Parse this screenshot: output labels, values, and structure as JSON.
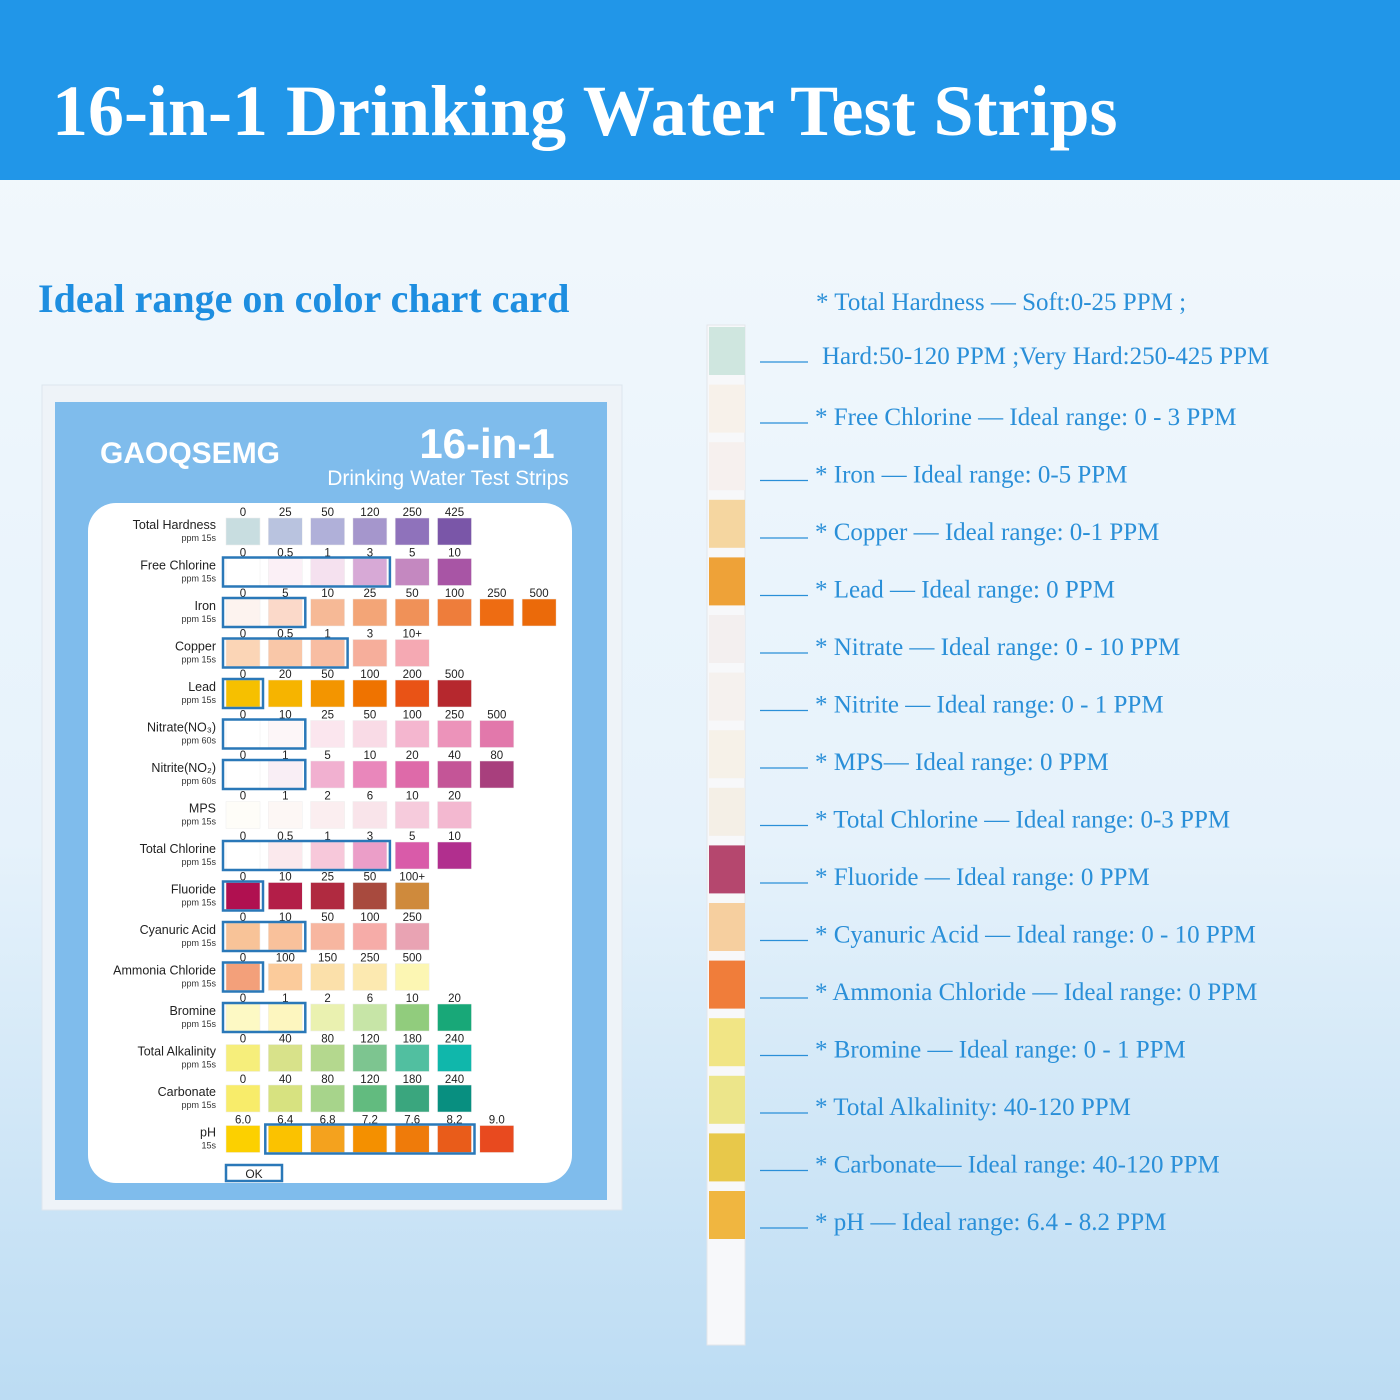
{
  "header": {
    "title": "16-in-1 Drinking Water Test Strips"
  },
  "subtitle": "Ideal range on color chart card",
  "card": {
    "brand": "GAOQSEMG",
    "title": "16-in-1",
    "subtitle": "Drinking Water Test Strips",
    "ok": "OK",
    "rows": [
      {
        "name": "Total Hardness",
        "unit": "ppm 15s",
        "levels": [
          "0",
          "25",
          "50",
          "120",
          "250",
          "425"
        ],
        "colors": [
          "#c8dde0",
          "#b9c3df",
          "#b0b0d9",
          "#a596cc",
          "#8f72bb",
          "#7a56a8"
        ]
      },
      {
        "name": "Free Chlorine",
        "unit": "ppm 15s",
        "levels": [
          "0",
          "0.5",
          "1",
          "3",
          "5",
          "10"
        ],
        "colors": [
          "#ffffff",
          "#fbf0f6",
          "#f5e1ef",
          "#d7a9d6",
          "#c488c0",
          "#a855a5"
        ],
        "ideal": [
          0,
          3
        ]
      },
      {
        "name": "Iron",
        "unit": "ppm 15s",
        "levels": [
          "0",
          "5",
          "10",
          "25",
          "50",
          "100",
          "250",
          "500"
        ],
        "colors": [
          "#fdf3ef",
          "#fbd9c9",
          "#f6b996",
          "#f3a577",
          "#f09158",
          "#ee7d3b",
          "#ee6c12",
          "#eb6a0a"
        ],
        "ideal": [
          0,
          1
        ]
      },
      {
        "name": "Copper",
        "unit": "ppm 15s",
        "levels": [
          "0",
          "0.5",
          "1",
          "3",
          "10+"
        ],
        "colors": [
          "#fbd5b6",
          "#f9c7a8",
          "#f8bda2",
          "#f6ae9b",
          "#f5a9b3"
        ],
        "ideal": [
          0,
          2
        ]
      },
      {
        "name": "Lead",
        "unit": "ppm 15s",
        "levels": [
          "0",
          "20",
          "50",
          "100",
          "200",
          "500"
        ],
        "colors": [
          "#f6c000",
          "#f6b400",
          "#f39500",
          "#ef7300",
          "#e95316",
          "#b6282e"
        ],
        "ideal": [
          0,
          0
        ]
      },
      {
        "name": "Nitrate(NO₃)",
        "unit": "ppm 60s",
        "levels": [
          "0",
          "10",
          "25",
          "50",
          "100",
          "250",
          "500"
        ],
        "colors": [
          "#ffffff",
          "#fdf6f8",
          "#fbe6ee",
          "#f9dbe6",
          "#f4b6cf",
          "#ec93ba",
          "#e278ab"
        ],
        "ideal": [
          0,
          1
        ]
      },
      {
        "name": "Nitrite(NO₂)",
        "unit": "ppm 60s",
        "levels": [
          "0",
          "1",
          "5",
          "10",
          "20",
          "40",
          "80"
        ],
        "colors": [
          "#ffffff",
          "#f9eef5",
          "#f1b0d0",
          "#e987bb",
          "#de6aa9",
          "#c45597",
          "#a83f7d"
        ],
        "ideal": [
          0,
          1
        ]
      },
      {
        "name": "MPS",
        "unit": "ppm 15s",
        "levels": [
          "0",
          "1",
          "2",
          "6",
          "10",
          "20"
        ],
        "colors": [
          "#fefdf8",
          "#fdf7f5",
          "#fbeef0",
          "#f9e4ea",
          "#f6cbdc",
          "#f3b8d0"
        ]
      },
      {
        "name": "Total Chlorine",
        "unit": "ppm 15s",
        "levels": [
          "0",
          "0.5",
          "1",
          "3",
          "5",
          "10"
        ],
        "colors": [
          "#ffffff",
          "#fbe9ed",
          "#f7c8da",
          "#eb9ec8",
          "#d95ba9",
          "#b12f8e"
        ],
        "ideal": [
          0,
          3
        ]
      },
      {
        "name": "Fluoride",
        "unit": "ppm 15s",
        "levels": [
          "0",
          "10",
          "25",
          "50",
          "100+"
        ],
        "colors": [
          "#b01050",
          "#b31e48",
          "#b02a40",
          "#a84a3e",
          "#cf8a3c"
        ],
        "ideal": [
          0,
          0
        ]
      },
      {
        "name": "Cyanuric Acid",
        "unit": "ppm 15s",
        "levels": [
          "0",
          "10",
          "50",
          "100",
          "250"
        ],
        "colors": [
          "#f8c398",
          "#f9c19b",
          "#f7b6a0",
          "#f6aca8",
          "#e9a3b3"
        ],
        "ideal": [
          0,
          1
        ]
      },
      {
        "name": "Ammonia Chloride",
        "unit": "ppm 15s",
        "levels": [
          "0",
          "100",
          "150",
          "250",
          "500"
        ],
        "colors": [
          "#f3a07a",
          "#fbcb9b",
          "#fbe0aa",
          "#fce9b0",
          "#fcf6b3"
        ],
        "ideal": [
          0,
          0
        ]
      },
      {
        "name": "Bromine",
        "unit": "ppm 15s",
        "levels": [
          "0",
          "1",
          "2",
          "6",
          "10",
          "20"
        ],
        "colors": [
          "#fdf9c4",
          "#fdf6bf",
          "#eaf1b0",
          "#c7e5a7",
          "#91cc7d",
          "#18a878"
        ],
        "ideal": [
          0,
          1
        ]
      },
      {
        "name": "Total Alkalinity",
        "unit": "ppm 15s",
        "levels": [
          "0",
          "40",
          "80",
          "120",
          "180",
          "240"
        ],
        "colors": [
          "#f6ee7b",
          "#d8e28a",
          "#b4d88e",
          "#7dc590",
          "#51bfa0",
          "#10b7ab"
        ]
      },
      {
        "name": "Carbonate",
        "unit": "ppm 15s",
        "levels": [
          "0",
          "40",
          "80",
          "120",
          "180",
          "240"
        ],
        "colors": [
          "#f8ec6a",
          "#d7e280",
          "#a7d48b",
          "#62bb7f",
          "#3aa67e",
          "#088f80"
        ]
      },
      {
        "name": "pH",
        "unit": "15s",
        "levels": [
          "6.0",
          "6.4",
          "6.8",
          "7.2",
          "7.6",
          "8.2",
          "9.0"
        ],
        "colors": [
          "#fcd000",
          "#fbc200",
          "#f4a21e",
          "#f49000",
          "#ef7b0a",
          "#e95c1a",
          "#e84a1f"
        ],
        "ideal": [
          1,
          5
        ]
      }
    ]
  },
  "strip": {
    "pads": [
      "#cfe6df",
      "#f7f1ea",
      "#f6f0ee",
      "#f5d6a0",
      "#eea238",
      "#f3efef",
      "#f5f1ee",
      "#f6f1e8",
      "#f4efe6",
      "#b5476e",
      "#f6cf9f",
      "#f07d3a",
      "#f1e585",
      "#ece58a",
      "#e8c84a",
      "#f0b640"
    ],
    "notes": [
      "* Total Hardness — Soft:0-25 PPM ;",
      "Hard:50-120 PPM ;Very Hard:250-425 PPM",
      "* Free Chlorine — Ideal range: 0 - 3 PPM",
      "* Iron — Ideal range: 0-5 PPM",
      "* Copper — Ideal range: 0-1 PPM",
      "* Lead — Ideal range: 0 PPM",
      "* Nitrate — Ideal range: 0 - 10 PPM",
      "* Nitrite — Ideal range: 0 - 1 PPM",
      "* MPS— Ideal range: 0 PPM",
      "* Total Chlorine — Ideal range: 0-3 PPM",
      "* Fluoride — Ideal range: 0 PPM",
      "* Cyanuric Acid — Ideal range: 0 - 10 PPM",
      "* Ammonia Chloride — Ideal range: 0 PPM",
      "* Bromine — Ideal range: 0 - 1 PPM",
      "* Total Alkalinity: 40-120 PPM",
      "* Carbonate— Ideal range: 40-120 PPM",
      "* pH — Ideal range: 6.4 - 8.2 PPM"
    ]
  }
}
